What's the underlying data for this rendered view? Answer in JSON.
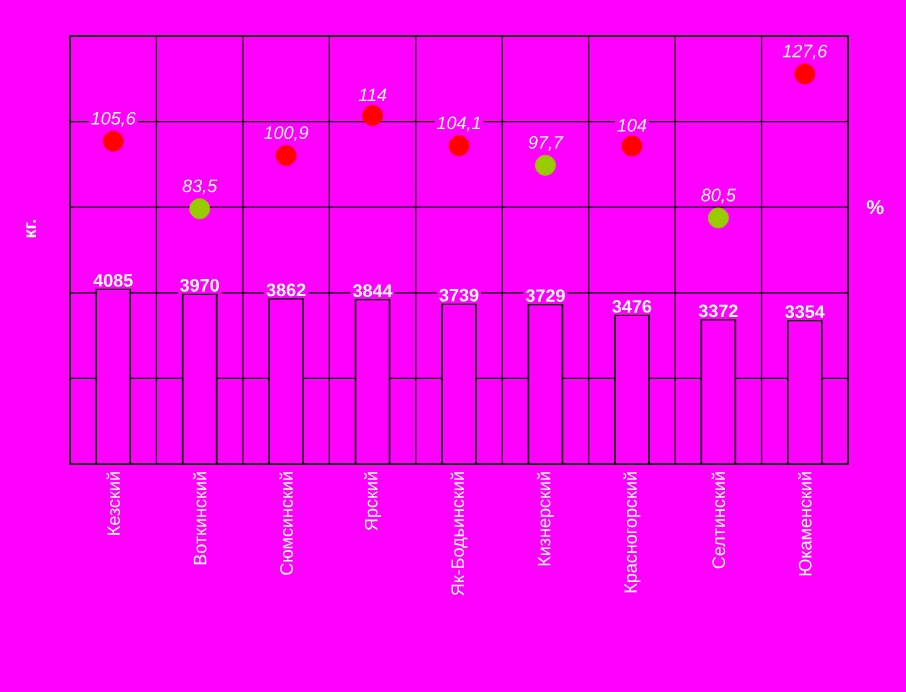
{
  "chart_data": {
    "type": "bar",
    "ylabel": "кг.",
    "y2label": "%",
    "categories": [
      "Кезский",
      "Воткинский",
      "Сюмсинский",
      "Ярский",
      "Як-Бодьинский",
      "Кизнерский",
      "Красногорский",
      "Селтинский",
      "Юкаменский"
    ],
    "ylim": [
      0,
      10000
    ],
    "yticks": [
      {
        "value": 0,
        "label": null
      },
      {
        "value": 2000,
        "label": null
      },
      {
        "value": 4000,
        "label": null
      },
      {
        "value": 6000,
        "label": null
      },
      {
        "value": 8000,
        "label": null
      },
      {
        "value": 10000,
        "label": null
      }
    ],
    "y2lim": [
      0,
      140
    ],
    "grid": true,
    "tick_labels": "x",
    "marker": "circle",
    "series": [
      {
        "color": "#000000",
        "values": [
          4085,
          3970,
          3862,
          3844,
          3739,
          3729,
          3476,
          3372,
          3354
        ],
        "value_labels": [
          "4085",
          "3970",
          "3862",
          "3844",
          "3739",
          "3729",
          "3476",
          "3372",
          "3354"
        ]
      },
      {
        "type": "scatter",
        "axis": "y2",
        "colors": [
          "#ff0000",
          "#99cc00",
          "#ff0000",
          "#ff0000",
          "#ff0000",
          "#99cc00",
          "#ff0000",
          "#99cc00",
          "#ff0000"
        ],
        "values": [
          105.6,
          83.5,
          100.9,
          114,
          104.1,
          97.7,
          104,
          80.5,
          127.6
        ],
        "value_labels": [
          "105,6",
          "83,5",
          "100,9",
          "114",
          "104,1",
          "97,7",
          "104",
          "80,5",
          "127,6"
        ]
      }
    ]
  }
}
